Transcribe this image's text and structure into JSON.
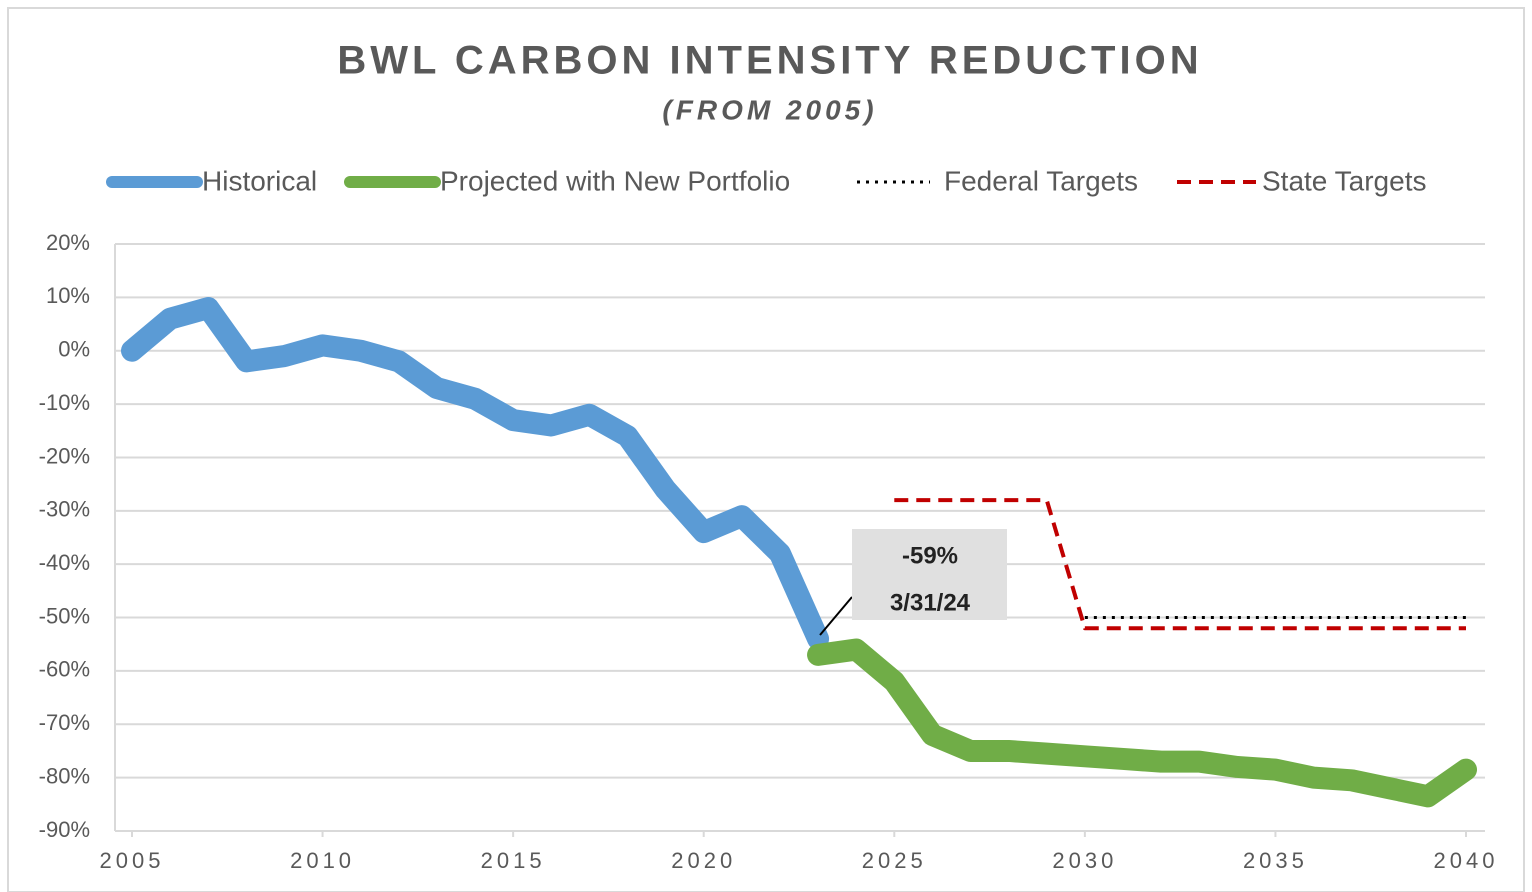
{
  "chart_data": {
    "type": "line",
    "title": "BWL CARBON INTENSITY REDUCTION",
    "subtitle": "(FROM 2005)",
    "xlim": [
      2005,
      2040
    ],
    "xticks": [
      2005,
      2010,
      2015,
      2020,
      2025,
      2030,
      2035,
      2040
    ],
    "ylim": [
      -90,
      20
    ],
    "yticks": [
      {
        "value": 20,
        "label": "20%"
      },
      {
        "value": 10,
        "label": "10%"
      },
      {
        "value": 0,
        "label": "0%"
      },
      {
        "value": -10,
        "label": "-10%"
      },
      {
        "value": -20,
        "label": "-20%"
      },
      {
        "value": -30,
        "label": "-30%"
      },
      {
        "value": -40,
        "label": "-40%"
      },
      {
        "value": -50,
        "label": "-50%"
      },
      {
        "value": -60,
        "label": "-60%"
      },
      {
        "value": -70,
        "label": "-70%"
      },
      {
        "value": -80,
        "label": "-80%"
      },
      {
        "value": -90,
        "label": "-90%"
      }
    ],
    "grid": true,
    "legend": "top",
    "series": [
      {
        "name": "Historical",
        "color": "#5b9bd5",
        "style": "solid",
        "x": [
          2005,
          2006,
          2007,
          2008,
          2009,
          2010,
          2011,
          2012,
          2013,
          2014,
          2015,
          2016,
          2017,
          2018,
          2019,
          2020,
          2021,
          2022,
          2023
        ],
        "values": [
          0,
          6,
          8,
          -2,
          -1,
          1,
          0,
          -2,
          -7,
          -9,
          -13,
          -14,
          -12,
          -16,
          -26,
          -34,
          -31,
          -38,
          -54
        ]
      },
      {
        "name": "Projected with New Portfolio",
        "color": "#70ad47",
        "style": "solid",
        "x": [
          2023,
          2024,
          2025,
          2026,
          2027,
          2028,
          2029,
          2030,
          2031,
          2032,
          2033,
          2034,
          2035,
          2036,
          2037,
          2038,
          2039,
          2040
        ],
        "values": [
          -57,
          -56,
          -62,
          -72,
          -75,
          -75,
          -75.5,
          -76,
          -76.5,
          -77,
          -77,
          -78,
          -78.5,
          -80,
          -80.5,
          -82,
          -83.5,
          -78.5
        ]
      },
      {
        "name": "Federal Targets",
        "color": "#000000",
        "style": "dotted",
        "x": [
          2030,
          2040
        ],
        "values": [
          -50,
          -50
        ]
      },
      {
        "name": "State Targets",
        "color": "#c00000",
        "style": "dashed",
        "x": [
          2025,
          2029,
          2030,
          2040
        ],
        "values": [
          -28,
          -28,
          -52,
          -52
        ]
      }
    ],
    "annotations": [
      "-59%",
      "3/31/24"
    ]
  }
}
